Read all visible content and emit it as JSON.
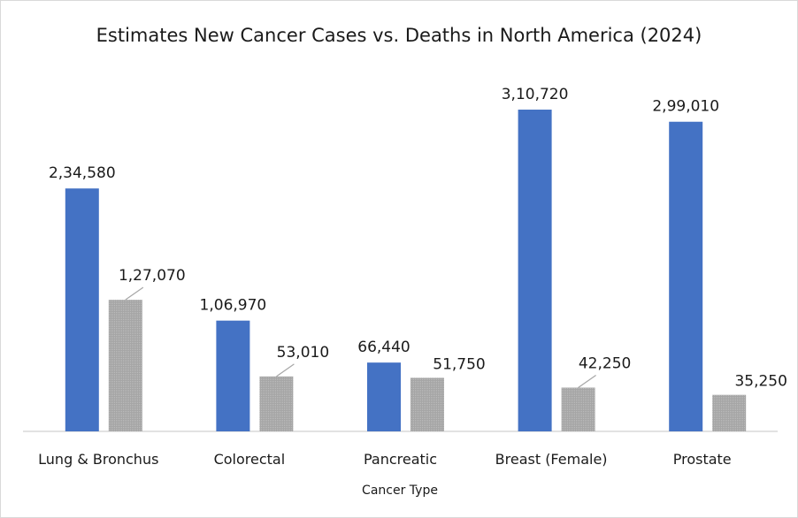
{
  "chart_data": {
    "type": "bar",
    "title": "Estimates New Cancer Cases vs. Deaths in North America (2024)",
    "xlabel": "Cancer Type",
    "ylabel": "",
    "categories": [
      "Lung & Bronchus",
      "Colorectal",
      "Pancreatic",
      "Breast (Female)",
      "Prostate"
    ],
    "series": [
      {
        "values": [
          234580,
          106970,
          66440,
          310720,
          299010
        ],
        "labels": [
          "2,34,580",
          "1,06,970",
          "66,440",
          "3,10,720",
          "2,99,010"
        ],
        "color": "#4472c4"
      },
      {
        "values": [
          127070,
          53010,
          51750,
          42250,
          35250
        ],
        "labels": [
          "1,27,070",
          "53,010",
          "51,750",
          "42,250",
          "35,250"
        ],
        "color": "#a5a5a5"
      }
    ],
    "ylim": [
      0,
      350000
    ],
    "grid": false,
    "legend": "none"
  }
}
